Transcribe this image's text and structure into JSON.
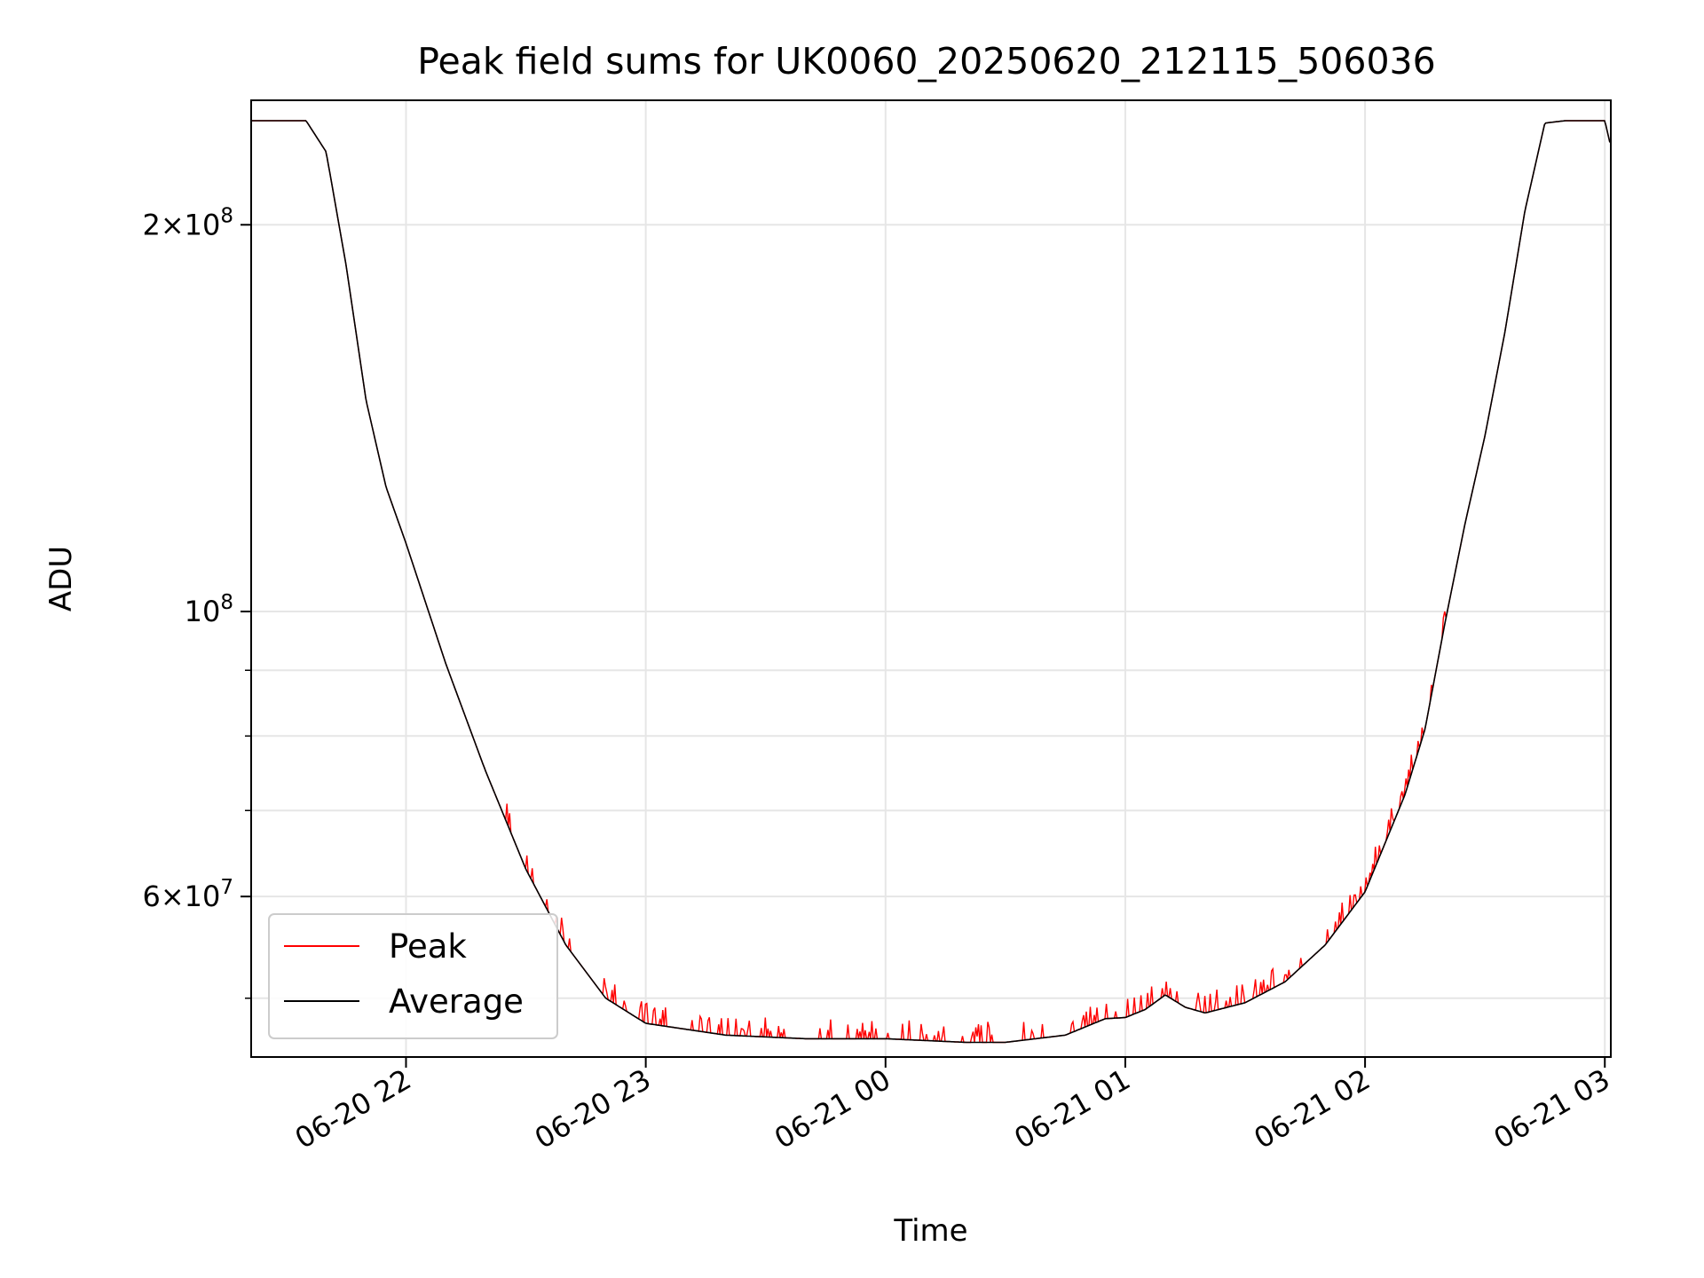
{
  "chart_data": {
    "type": "line",
    "title": "Peak field sums for UK0060_20250620_212115_506036",
    "xlabel": "Time",
    "ylabel": "ADU",
    "yscale": "log",
    "ylim": [
      45000000,
      250000000
    ],
    "xlim": [
      "2025-06-20T21:21:15",
      "2025-06-21T03:01:30"
    ],
    "grid": true,
    "legend": {
      "placement": "lower left",
      "entries": [
        "Peak",
        "Average"
      ]
    },
    "x_ticks": [
      {
        "time": "2025-06-20T22:00",
        "label": "06-20 22"
      },
      {
        "time": "2025-06-20T23:00",
        "label": "06-20 23"
      },
      {
        "time": "2025-06-21T00:00",
        "label": "06-21 00"
      },
      {
        "time": "2025-06-21T01:00",
        "label": "06-21 01"
      },
      {
        "time": "2025-06-21T02:00",
        "label": "06-21 02"
      },
      {
        "time": "2025-06-21T03:00",
        "label": "06-21 03"
      }
    ],
    "y_ticks": [
      {
        "value": 200000000,
        "mantissa": "2",
        "exponent": "8"
      },
      {
        "value": 100000000,
        "mantissa": "",
        "exponent": "8"
      },
      {
        "value": 60000000,
        "mantissa": "6",
        "exponent": "7"
      }
    ],
    "y_minor_ticks": [
      50000000,
      70000000,
      80000000,
      90000000
    ],
    "series": [
      {
        "name": "Average",
        "color": "#000000",
        "x": [
          "2025-06-20T21:21:15",
          "2025-06-20T21:30",
          "2025-06-20T21:35",
          "2025-06-20T21:40",
          "2025-06-20T21:45",
          "2025-06-20T21:50",
          "2025-06-20T21:55",
          "2025-06-20T22:00",
          "2025-06-20T22:10",
          "2025-06-20T22:20",
          "2025-06-20T22:30",
          "2025-06-20T22:40",
          "2025-06-20T22:50",
          "2025-06-20T23:00",
          "2025-06-20T23:20",
          "2025-06-20T23:40",
          "2025-06-21T00:00",
          "2025-06-21T00:20",
          "2025-06-21T00:30",
          "2025-06-21T00:45",
          "2025-06-21T00:55",
          "2025-06-21T01:00",
          "2025-06-21T01:05",
          "2025-06-21T01:10",
          "2025-06-21T01:15",
          "2025-06-21T01:20",
          "2025-06-21T01:30",
          "2025-06-21T01:40",
          "2025-06-21T01:50",
          "2025-06-21T02:00",
          "2025-06-21T02:10",
          "2025-06-21T02:15",
          "2025-06-21T02:20",
          "2025-06-21T02:25",
          "2025-06-21T02:30",
          "2025-06-21T02:35",
          "2025-06-21T02:40",
          "2025-06-21T02:45",
          "2025-06-21T02:50",
          "2025-06-21T03:00",
          "2025-06-21T03:01:30"
        ],
        "y": [
          241000000,
          241000000,
          241000000,
          228000000,
          186000000,
          146000000,
          125000000,
          113000000,
          91000000,
          75000000,
          63000000,
          55000000,
          50000000,
          47800000,
          46800000,
          46500000,
          46500000,
          46200000,
          46200000,
          46800000,
          48200000,
          48300000,
          49000000,
          50300000,
          49200000,
          48700000,
          49600000,
          51500000,
          55000000,
          60500000,
          72000000,
          81000000,
          98000000,
          117000000,
          137000000,
          165000000,
          205000000,
          240000000,
          241000000,
          241000000,
          230000000
        ]
      },
      {
        "name": "Peak",
        "color": "#ff0000",
        "spike_start": "2025-06-20T22:25",
        "spike_end": "2025-06-21T02:20",
        "spike_height_decades": [
          0.004,
          0.016
        ]
      }
    ]
  }
}
